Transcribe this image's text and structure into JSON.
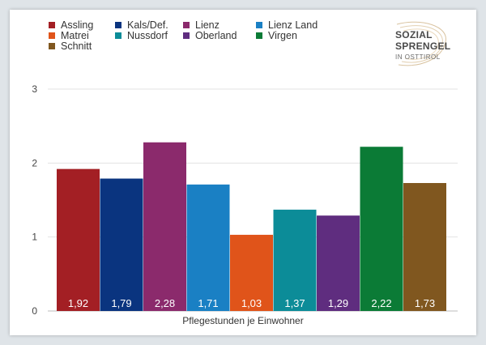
{
  "logo": {
    "line1": "SOZIAL",
    "line2": "SPRENGEL",
    "line3": "IN OSTTIROL"
  },
  "chart_data": {
    "type": "bar",
    "categories": [
      "Assling",
      "Kals/Def.",
      "Lienz",
      "Lienz Land",
      "Matrei",
      "Nussdorf",
      "Oberland",
      "Virgen",
      "Schnitt"
    ],
    "values": [
      1.92,
      1.79,
      2.28,
      1.71,
      1.03,
      1.37,
      1.29,
      2.22,
      1.73
    ],
    "value_labels": [
      "1,92",
      "1,79",
      "2,28",
      "1,71",
      "1,03",
      "1,37",
      "1,29",
      "2,22",
      "1,73"
    ],
    "colors": [
      "#a31f24",
      "#0a347f",
      "#8b2a6c",
      "#1a80c4",
      "#e0541a",
      "#0c8c98",
      "#5f2d7f",
      "#0b7b36",
      "#80571f"
    ],
    "xlabel": "Pflegestunden je Einwohner",
    "ylabel": "",
    "ylim": [
      0,
      3
    ],
    "yticks": [
      0,
      1,
      2,
      3
    ],
    "grid": true,
    "legend_position": "top-left"
  }
}
